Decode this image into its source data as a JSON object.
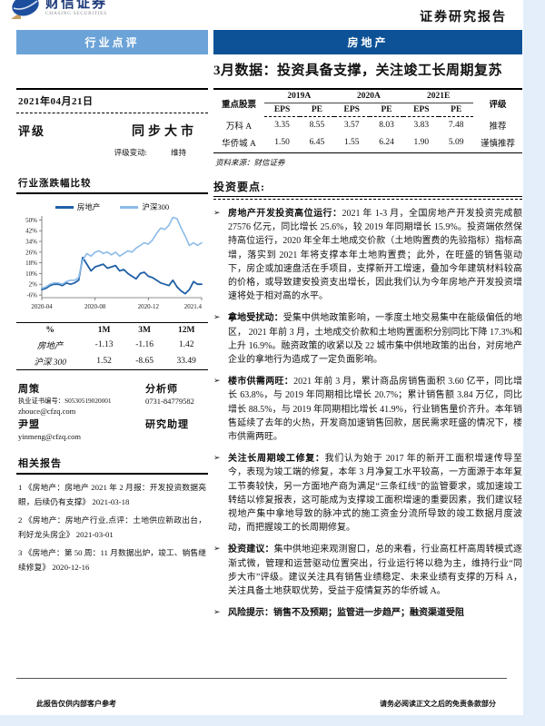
{
  "header": {
    "logo_cn": "财信证券",
    "logo_en": "CHASING SECURITIES",
    "report_type": "证券研究报告"
  },
  "band": {
    "left": "行业点评",
    "right": "房地产"
  },
  "title": "3月数据：投资具备支撑，关注竣工长周期复苏",
  "colors": {
    "band_light": "#6ba3d8",
    "band_dark": "#0d5296",
    "series_industry": "#1f5fa6",
    "series_index": "#8bbbe8",
    "page_margin": "#e4eefa"
  },
  "left": {
    "date": "2021年04月21日",
    "rating_label": "评级",
    "rating_value": "同步大市",
    "rating_change_label": "评级变动:",
    "rating_change_value": "维持",
    "chart_title": "行业涨跌幅比较",
    "perf_table": {
      "headers": [
        "%",
        "1M",
        "3M",
        "12M"
      ],
      "rows": [
        {
          "name": "房地产",
          "v1": "-1.13",
          "v2": "-1.16",
          "v3": "1.42"
        },
        {
          "name": "沪深 300",
          "v1": "1.52",
          "v2": "-8.65",
          "v3": "33.49"
        }
      ]
    },
    "analysts": {
      "name1": "周策",
      "role1": "分析师",
      "cert": "执业证书编号：S0530519020001",
      "email1": "zhouce@cfzq.com",
      "phone1": "0731-84779582",
      "name2": "尹盟",
      "role2": "研究助理",
      "email2": "yinmeng@cfzq.com"
    },
    "related_title": "相关报告",
    "related": [
      "1 《房地产：房地产 2021 年 2 月报：开发投资数据亮眼，后续仍有支撑》  2021-03-18",
      "2 《房地产：房地产行业,点评：土地供应新政出台，利好龙头房企》  2021-03-01",
      "3 《房地产：第 50 周：11 月数据出炉，竣工、销售继续修复》  2020-12-16"
    ]
  },
  "stock_table": {
    "col_stock": "重点股票",
    "years": [
      "2019A",
      "2020A",
      "2021E"
    ],
    "sub_eps": "EPS",
    "sub_pe": "PE",
    "col_rating": "评级",
    "rows": [
      {
        "name": "万科 A",
        "vals": [
          "3.35",
          "8.55",
          "3.57",
          "8.03",
          "3.83",
          "7.48"
        ],
        "rating": "推荐"
      },
      {
        "name": "华侨城 A",
        "vals": [
          "1.50",
          "6.45",
          "1.55",
          "6.24",
          "1.90",
          "5.09"
        ],
        "rating": "谨慎推荐"
      }
    ],
    "source": "资料来源：财信证券"
  },
  "points": {
    "title": "投资要点:",
    "marker": "➢",
    "bullets": [
      {
        "lead": "房地产开发投资高位运行：",
        "text": "2021 年 1-3 月，全国房地产开发投资完成额 27576 亿元，同比增长 25.6%，较 2019 年同期增长 15.9%。投资端依然保持高位运行，2020 年全年土地成交价款（土地购置费的先验指标）指标高增，落实到 2021 年将支撑本年土地购置费；此外，在旺盛的销售驱动下，房企或加速盘活在手项目，支撑新开工增速，叠加今年建筑材料较高的价格，或导致建安投资支出增长，因此我们认为今年房地产开发投资增速将处于相对高的水平。"
      },
      {
        "lead": "拿地受扰动：",
        "text": "受集中供地政策影响，一季度土地交易集中在能级偏低的地区， 2021 年前 3 月，土地成交价款和土地购置面积分别同比下降 17.3%和上升 16.9%。融资政策的收紧以及 22 城市集中供地政策的出台，对房地产企业的拿地行为造成了一定负面影响。"
      },
      {
        "lead": "楼市供需两旺：",
        "text": "2021 年前 3 月，累计商品房销售面积 3.60 亿平，同比增长 63.8%，与 2019 年同期相比增长 20.7%；累计销售额 3.84 万亿，同比增长 88.5%，与 2019 年同期相比增长 41.9%，行业销售量价齐升。本年销售延续了去年的火热，开发商加速销售回款，居民需求旺盛的情况下，楼市供需两旺。"
      },
      {
        "lead": "关注长周期竣工修复：",
        "text": "我们认为始于 2017 年的新开工面积增速传导至今，表现为竣工端的修复，本年 3 月净复工水平较高，一方面源于本年复工节奏较快，另一方面地产商为满足“三条红线”的监管要求，或加速竣工转结以修复报表，这可能成为支撑竣工面积增速的重要因素，我们建议轻视地产集中拿地导致的脉冲式的施工资金分流所导致的竣工数据月度波动，而把握竣工的长周期修复。"
      },
      {
        "lead": "投资建议：",
        "text": "集中供地迎来观测窗口，总的来看，行业高杠杆高周转模式逐渐式微，管理和运营驱动位置突出，行业运行将以稳为主，维持行业“同步大市”评级。建议关注具有销售业绩稳定、未来业绩有支撑的万科 A，关注具备土地获取优势，受益于疫情复苏的华侨城 A。"
      },
      {
        "lead": "风险提示：销售不及预期；监管进一步趋严；融资渠道受阻",
        "text": ""
      }
    ]
  },
  "footer": {
    "left": "此报告仅供内部客户参考",
    "right": "请务必阅读正文之后的免责条款部分"
  },
  "chart_data": {
    "type": "line",
    "title": "行业涨跌幅比较",
    "legend_position": "top",
    "y_ticks": [
      "50%",
      "42%",
      "34%",
      "26%",
      "18%",
      "10%",
      "2%",
      "-6%"
    ],
    "y_tick_values": [
      50,
      42,
      34,
      26,
      18,
      10,
      2,
      -6
    ],
    "ylim": [
      -8,
      53
    ],
    "x_ticks": [
      "2020-04",
      "2020-08",
      "2020-12",
      "2021.4"
    ],
    "series": [
      {
        "name": "房地产",
        "color": "#1f5fa6",
        "values": [
          -2,
          -1,
          1,
          2,
          2,
          1,
          3,
          2,
          3,
          5,
          22,
          17,
          12,
          15,
          16,
          17,
          14,
          15,
          16,
          12,
          13,
          10,
          8,
          6,
          10,
          11,
          8,
          7,
          5,
          3,
          2,
          1,
          5,
          0,
          -3,
          -5,
          -2,
          4,
          2,
          2
        ]
      },
      {
        "name": "沪深300",
        "color": "#8bbbe8",
        "values": [
          -1,
          0,
          2,
          3,
          3,
          2,
          4,
          5,
          5,
          7,
          20,
          25,
          23,
          26,
          27,
          25,
          26,
          24,
          26,
          23,
          25,
          27,
          26,
          29,
          31,
          33,
          32,
          35,
          40,
          44,
          43,
          46,
          52,
          51,
          44,
          38,
          31,
          33,
          31,
          33
        ]
      }
    ]
  }
}
